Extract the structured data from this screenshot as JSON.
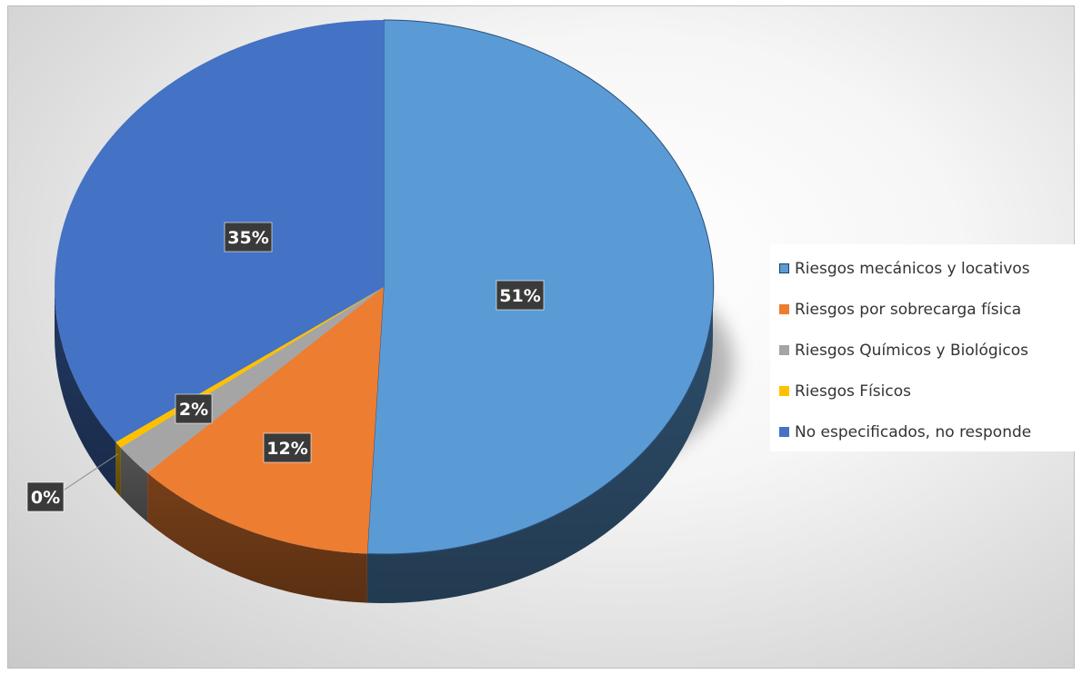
{
  "chart_data": {
    "type": "pie",
    "style": "3d",
    "categories": [
      "Riesgos mecánicos y locativos",
      "Riesgos por sobrecarga física",
      "Riesgos Químicos y Biológicos",
      "Riesgos Físicos",
      "No especificados, no responde"
    ],
    "values": [
      51,
      12,
      2,
      0,
      35
    ],
    "data_labels": [
      "51%",
      "12%",
      "2%",
      "0%",
      "35%"
    ],
    "colors": [
      "#5b9bd5",
      "#ed7d31",
      "#a5a5a5",
      "#ffc000",
      "#4472c4"
    ],
    "legend_position": "right"
  }
}
